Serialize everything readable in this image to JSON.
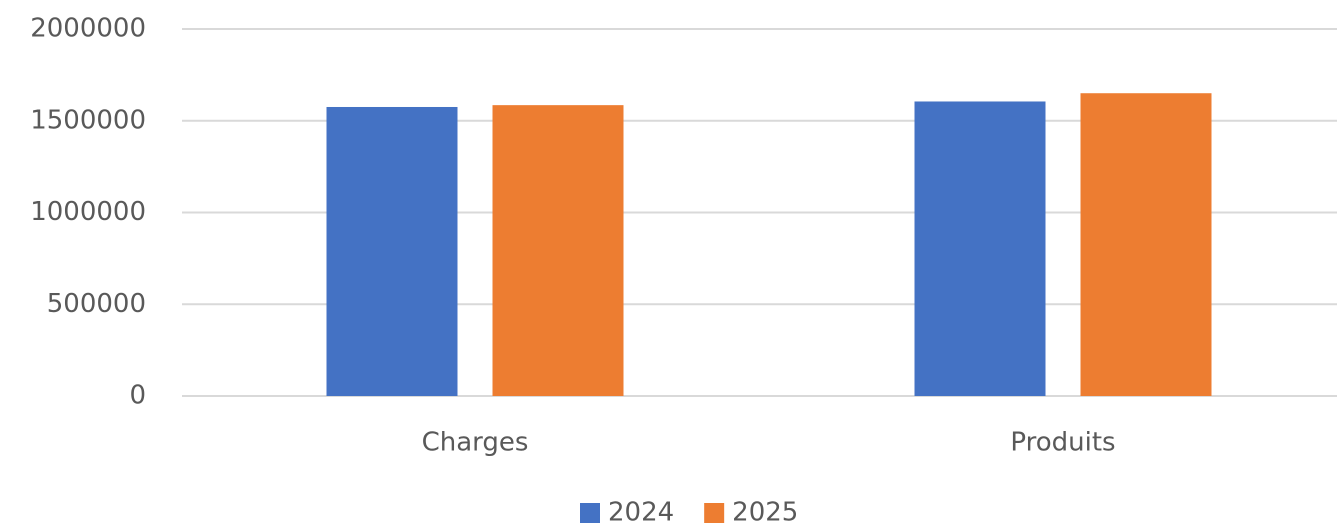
{
  "chart_data": {
    "type": "bar",
    "categories": [
      "Charges",
      "Produits"
    ],
    "series": [
      {
        "name": "2024",
        "color": "#4472c4",
        "values": [
          1575000,
          1605000
        ]
      },
      {
        "name": "2025",
        "color": "#ed7d31",
        "values": [
          1585000,
          1650000
        ]
      }
    ],
    "ylim": [
      0,
      2000000
    ],
    "yticks": [
      0,
      500000,
      1000000,
      1500000,
      2000000
    ],
    "grid": true,
    "legend": "bottom"
  }
}
